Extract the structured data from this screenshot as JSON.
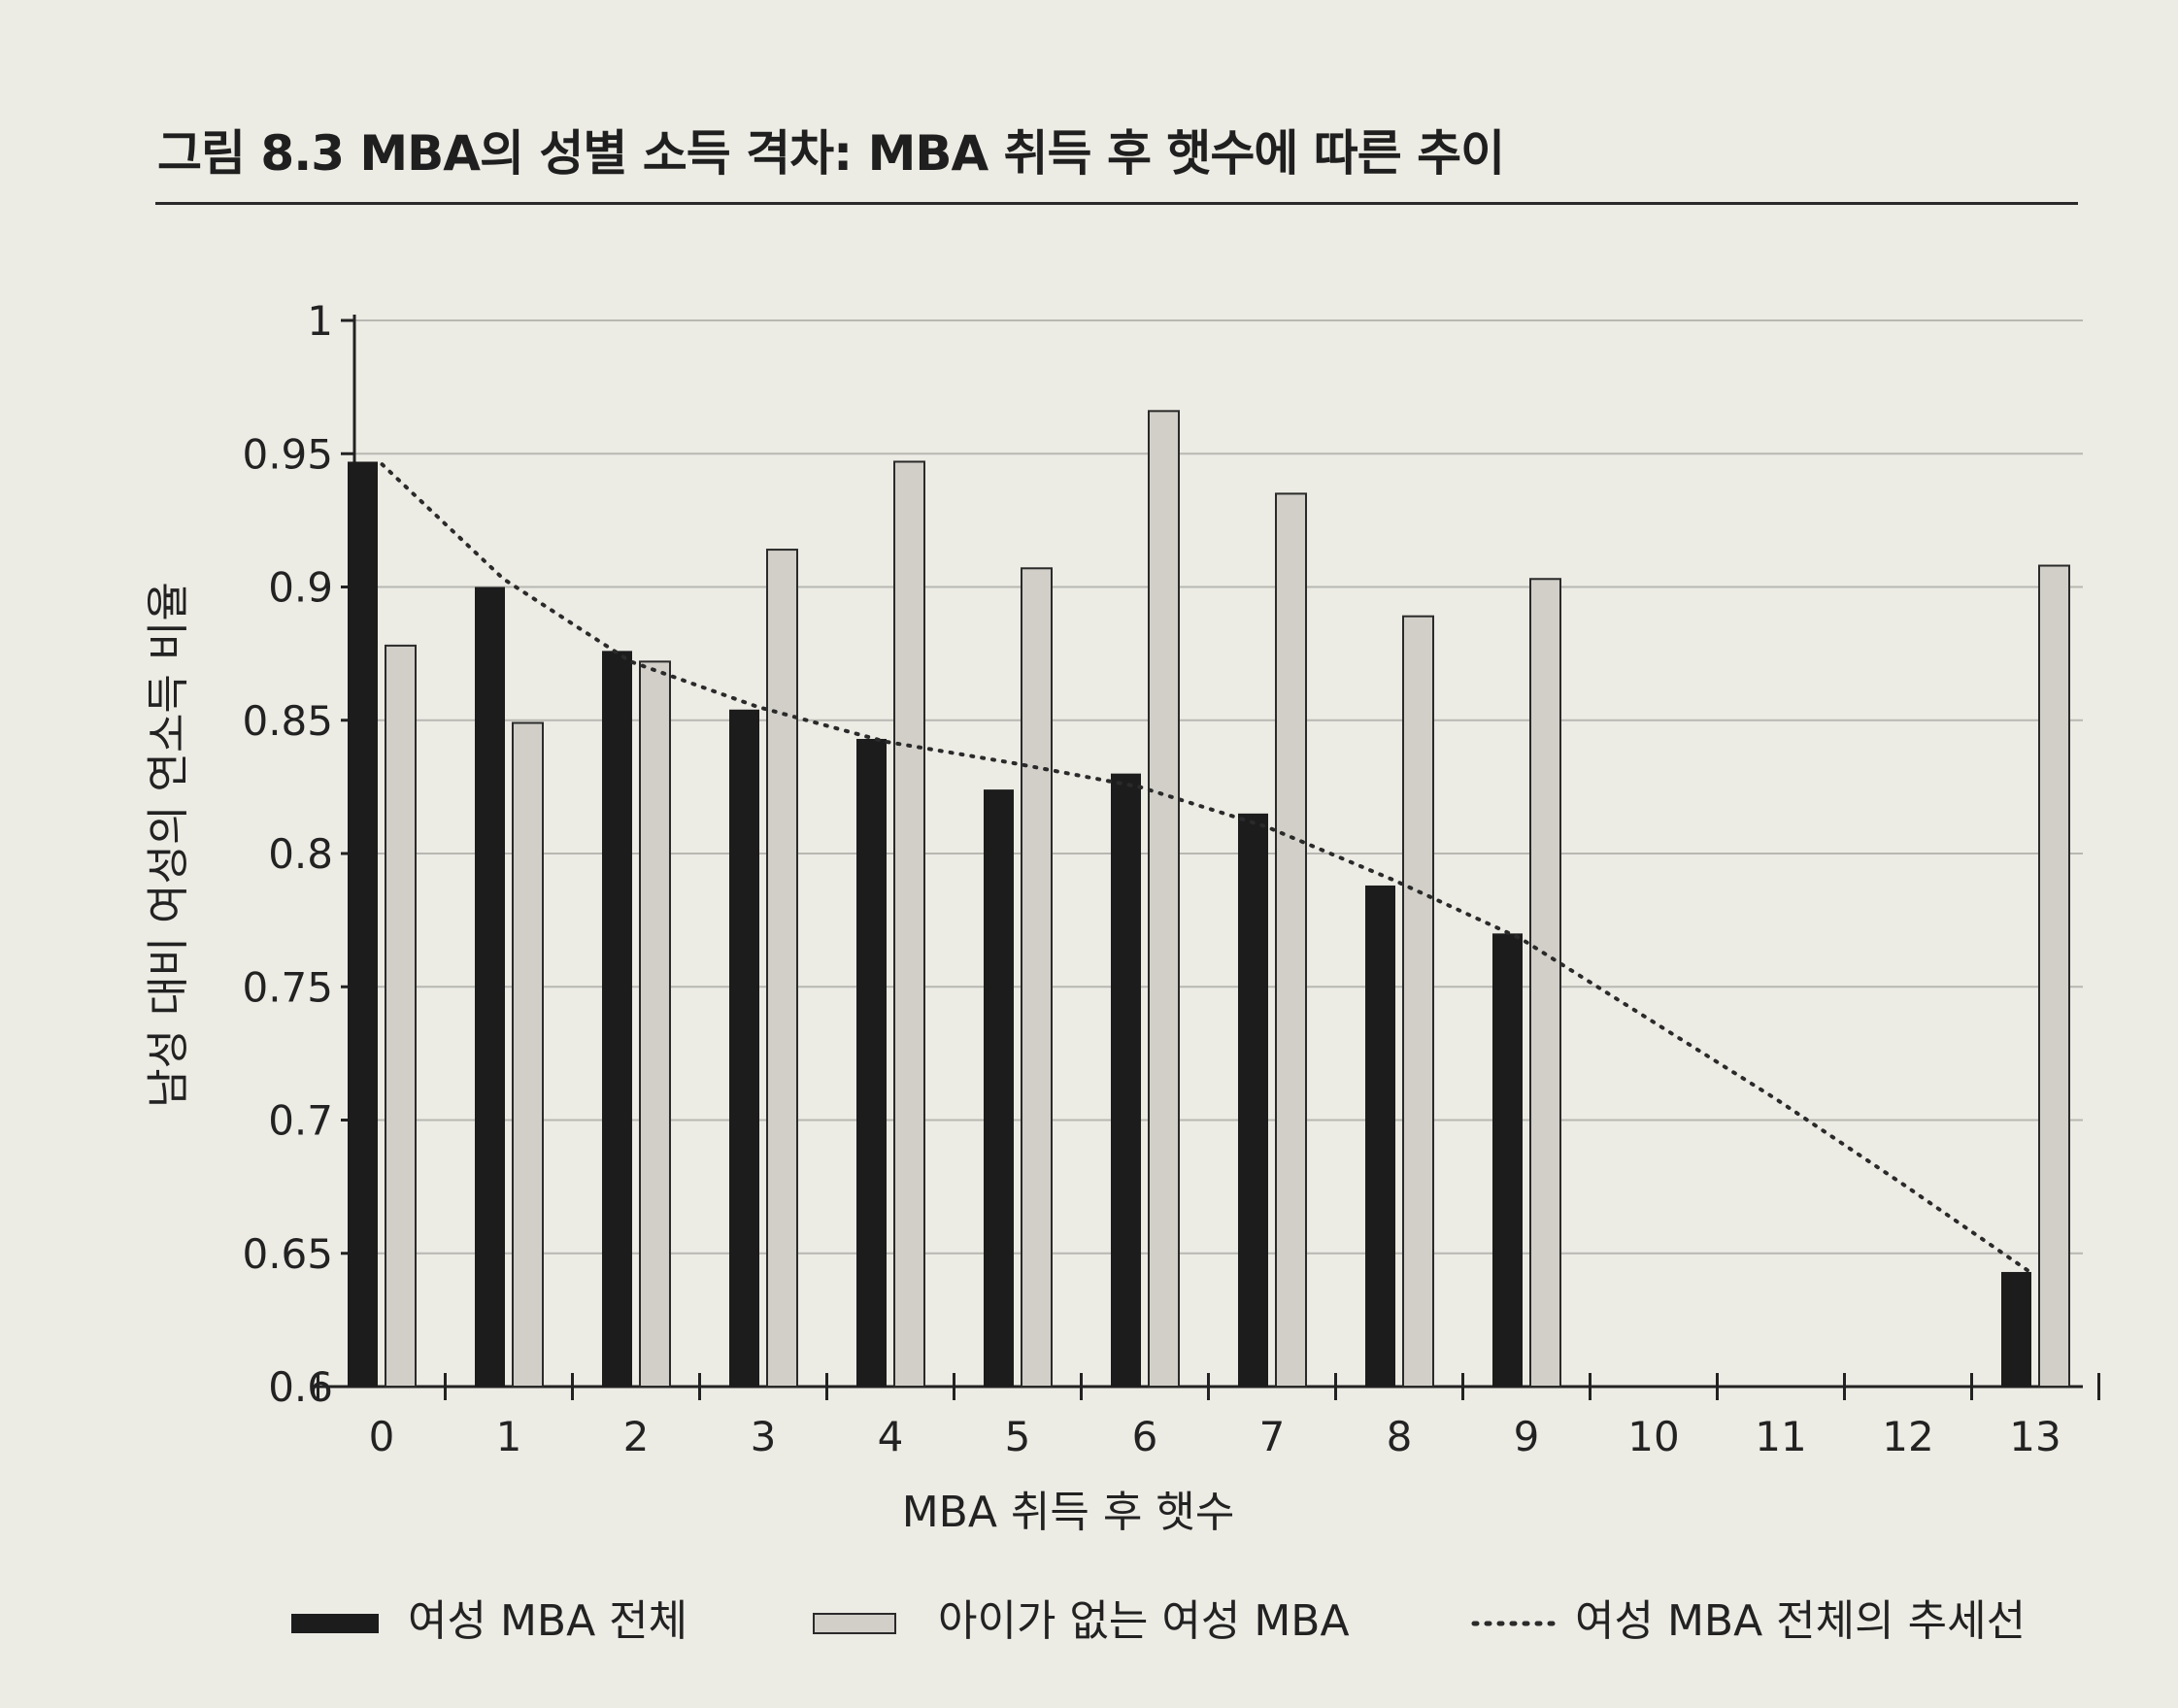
{
  "figure": {
    "title": "그림 8.3 MBA의 성별 소득 격차: MBA 취득 후 햇수에 따른 추이"
  },
  "colors": {
    "background": "#ecebe4",
    "dark_bar": "#1c1c1c",
    "light_bar": "#d1cfc8",
    "light_bar_stroke": "#2a2a2a",
    "trend": "#2a2a2a",
    "grid": "#b8b8b2"
  },
  "chart_data": {
    "type": "bar",
    "xlabel": "MBA 취득 후 햇수",
    "ylabel": "남성 대비 여성의 연소득 비율",
    "categories": [
      "0",
      "1",
      "2",
      "3",
      "4",
      "5",
      "6",
      "7",
      "8",
      "9",
      "10",
      "11",
      "12",
      "13"
    ],
    "ylim": [
      0.6,
      1.0
    ],
    "yticks": [
      0.6,
      0.65,
      0.7,
      0.75,
      0.8,
      0.85,
      0.9,
      0.95,
      1.0
    ],
    "ytick_labels": [
      "0.6",
      "0.65",
      "0.7",
      "0.75",
      "0.8",
      "0.85",
      "0.9",
      "0.95",
      "1"
    ],
    "grid": true,
    "legend_position": "bottom",
    "series": [
      {
        "name": "여성 MBA 전체",
        "style": "dark-bar",
        "values": [
          0.947,
          0.9,
          0.876,
          0.854,
          0.843,
          0.824,
          0.83,
          0.815,
          0.788,
          0.77,
          null,
          null,
          null,
          0.643
        ]
      },
      {
        "name": "아이가 없는 여성 MBA",
        "style": "light-bar",
        "values": [
          0.878,
          0.849,
          0.872,
          0.914,
          0.947,
          0.907,
          0.966,
          0.935,
          0.889,
          0.903,
          null,
          null,
          null,
          0.908
        ]
      },
      {
        "name": "여성 MBA 전체의 추세선",
        "style": "dotted-line",
        "values": [
          0.946,
          0.903,
          0.872,
          0.855,
          0.842,
          0.834,
          0.825,
          0.81,
          0.79,
          0.768,
          0.738,
          0.708,
          0.676,
          0.643
        ]
      }
    ]
  }
}
